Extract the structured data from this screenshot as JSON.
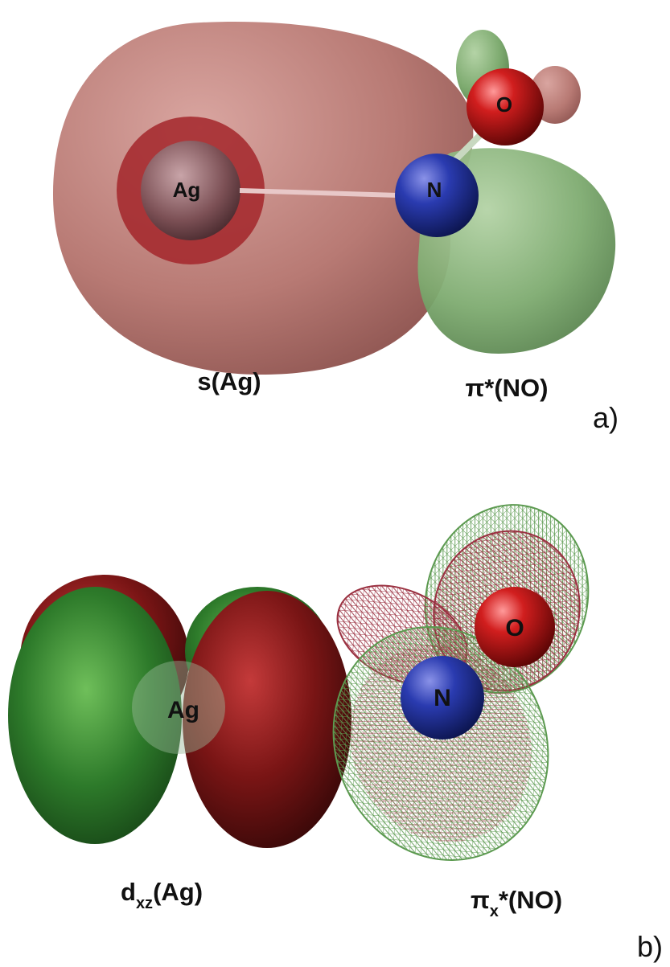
{
  "panel_a": {
    "atoms": {
      "ag": "Ag",
      "n": "N",
      "o": "O"
    },
    "captions": {
      "left": "s(Ag)",
      "right": "π*(NO)"
    },
    "tag": "a)"
  },
  "panel_b": {
    "atoms": {
      "ag": "Ag",
      "n": "N",
      "o": "O"
    },
    "captions": {
      "left": {
        "main": "d",
        "sub": "xz",
        "rest": "(Ag)"
      },
      "right": {
        "main": "π",
        "sub": "x",
        "rest": "*(NO)"
      }
    },
    "tag": "b)"
  }
}
